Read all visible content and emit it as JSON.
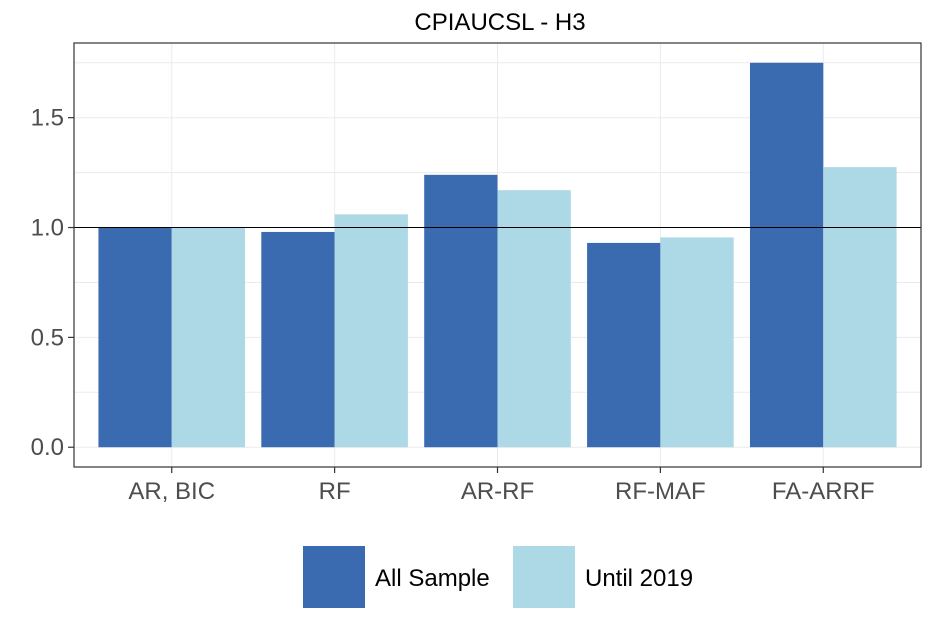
{
  "chart_data": {
    "type": "bar",
    "title": "CPIAUCSL - H3",
    "xlabel": "",
    "ylabel": "",
    "categories": [
      "AR, BIC",
      "RF",
      "AR-RF",
      "RF-MAF",
      "FA-ARRF"
    ],
    "series": [
      {
        "name": "All Sample",
        "values": [
          1.0,
          0.98,
          1.24,
          0.93,
          1.75
        ],
        "color": "#3A6BB0"
      },
      {
        "name": "Until 2019",
        "values": [
          1.0,
          1.06,
          1.17,
          0.955,
          1.275
        ],
        "color": "#ADD8E6"
      }
    ],
    "ylim": [
      -0.09,
      1.84
    ],
    "yticks": [
      0.0,
      0.5,
      1.0,
      1.5
    ],
    "ytick_labels": [
      "0.0",
      "0.5",
      "1.0",
      "1.5"
    ],
    "reference_line": 1.0,
    "grid": true,
    "legend_position": "bottom"
  }
}
